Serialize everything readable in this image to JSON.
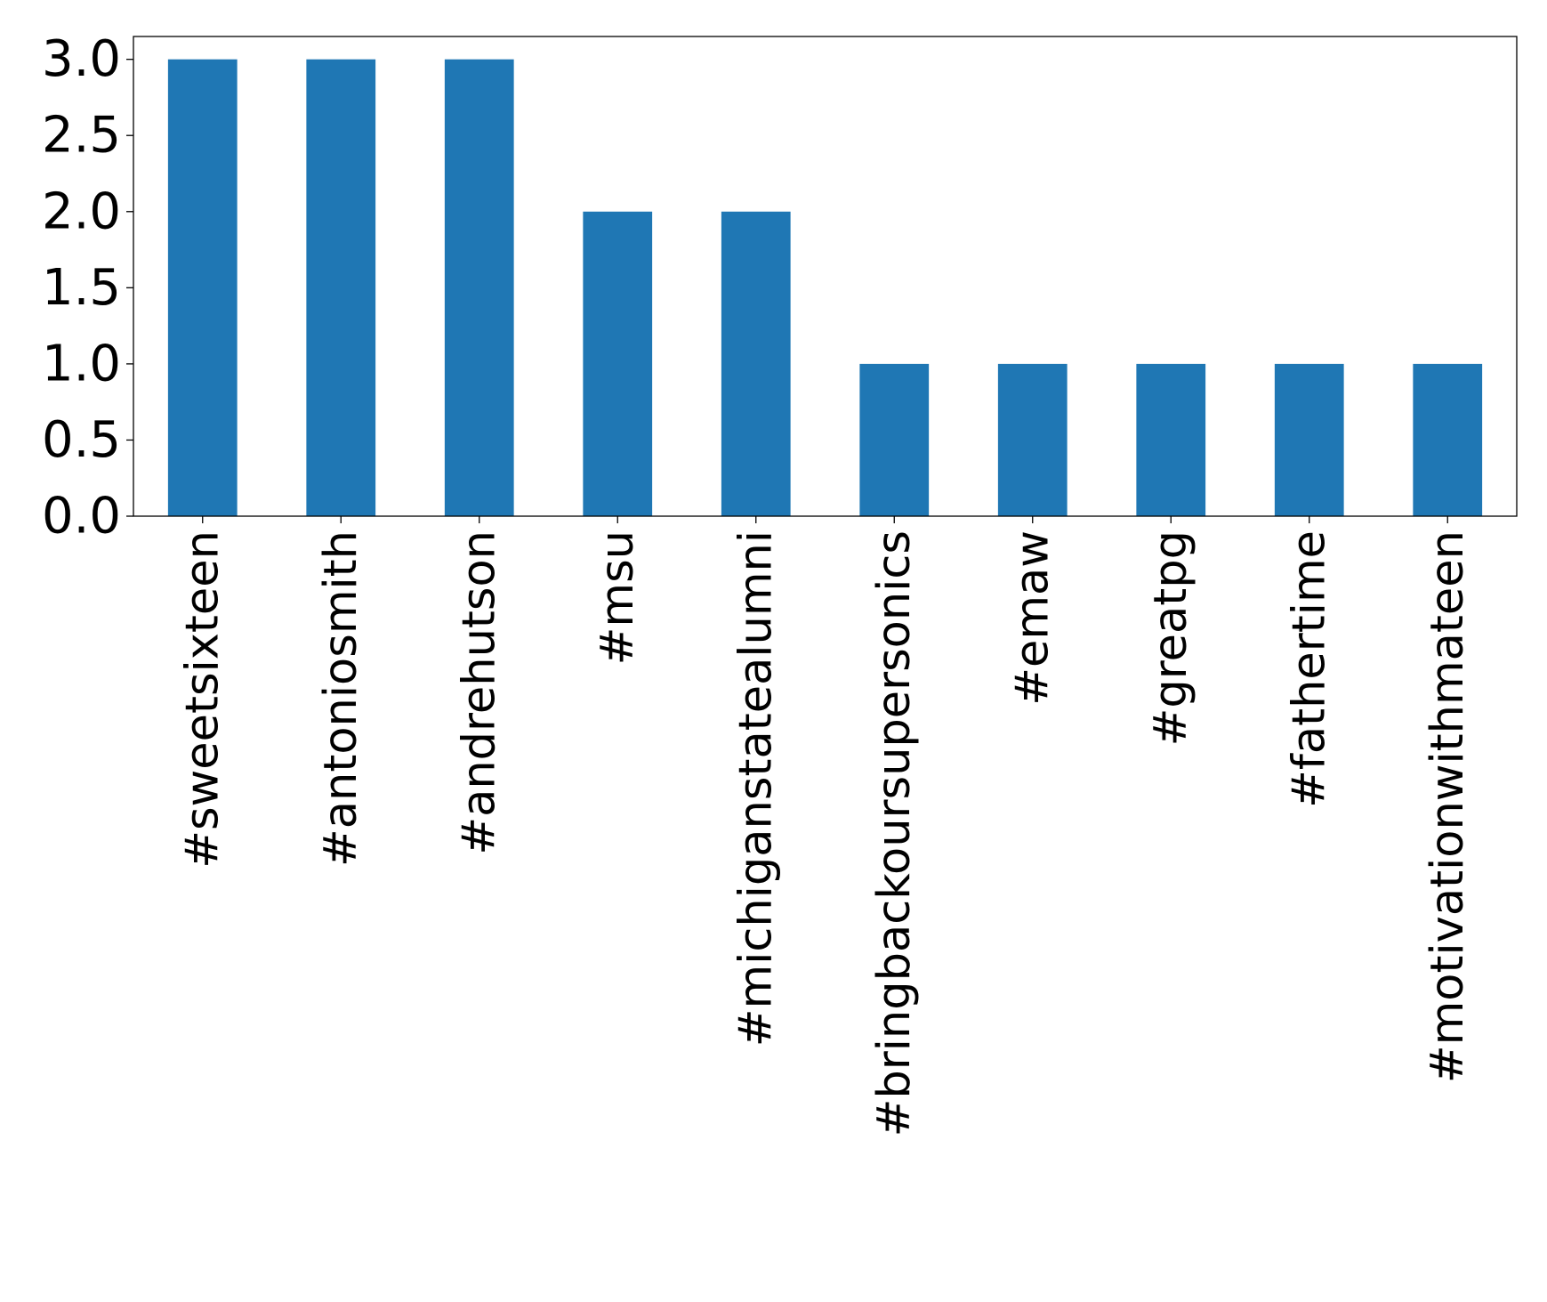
{
  "chart_data": {
    "type": "bar",
    "categories": [
      "#sweetsixteen",
      "#antoniosmith",
      "#andrehutson",
      "#msu",
      "#michiganstatealumni",
      "#bringbackoursupersonics",
      "#emaw",
      "#greatpg",
      "#fathertime",
      "#motivationwithmateen"
    ],
    "values": [
      3,
      3,
      3,
      2,
      2,
      1,
      1,
      1,
      1,
      1
    ],
    "title": "",
    "xlabel": "",
    "ylabel": "",
    "ylim": [
      0,
      3.15
    ],
    "yticks": [
      "0.0",
      "0.5",
      "1.0",
      "1.5",
      "2.0",
      "2.5",
      "3.0"
    ],
    "bar_color": "#1f77b4",
    "grid": false,
    "legend": "none"
  }
}
